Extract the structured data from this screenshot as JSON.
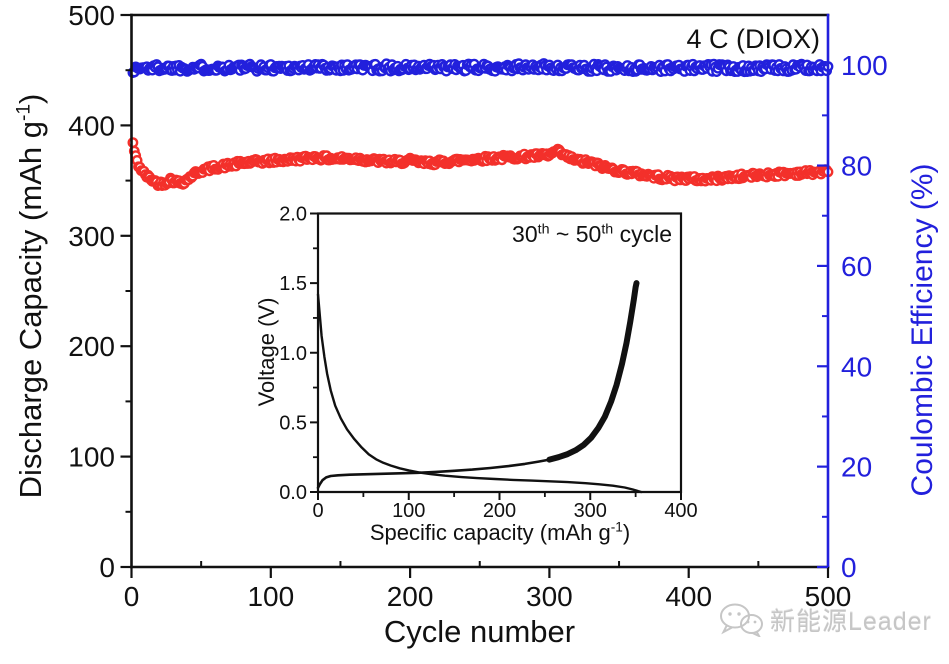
{
  "chart_data": [
    {
      "type": "scatter",
      "annotation": "4 C (DIOX)",
      "xlabel": "Cycle number",
      "ylabel_left": {
        "pre": "Discharge Capacity (mAh g",
        "sup": "-1",
        "post": ")"
      },
      "ylabel_right": "Coulombic Efficiency (%)",
      "xlim": [
        0,
        500
      ],
      "ylim_left": [
        0,
        500
      ],
      "ylim_right": [
        0,
        110
      ],
      "x_major_ticks": [
        0,
        100,
        200,
        300,
        400,
        500
      ],
      "x_minor_ticks": [
        50,
        150,
        250,
        350,
        450
      ],
      "y_left_major_ticks": [
        0,
        100,
        200,
        300,
        400,
        500
      ],
      "y_left_minor_ticks": [
        50,
        150,
        250,
        350,
        450
      ],
      "y_right_major_ticks": [
        0,
        20,
        40,
        60,
        80,
        100
      ],
      "y_right_minor_ticks": [
        10,
        30,
        50,
        70,
        90
      ],
      "grid": false,
      "legend": "none",
      "axis_color_left": "#111111",
      "axis_color_right": "#2220dc",
      "series": [
        {
          "name": "discharge-capacity",
          "axis": "left",
          "color": "#f3302b",
          "marker": "open-circle",
          "jitter": 2.3,
          "trend_anchors": [
            [
              1,
              384
            ],
            [
              2,
              377
            ],
            [
              3,
              371
            ],
            [
              5,
              364
            ],
            [
              8,
              358
            ],
            [
              12,
              353
            ],
            [
              16,
              350
            ],
            [
              20,
              347
            ],
            [
              24,
              348
            ],
            [
              28,
              351
            ],
            [
              32,
              349
            ],
            [
              36,
              348
            ],
            [
              40,
              351
            ],
            [
              45,
              356
            ],
            [
              50,
              359
            ],
            [
              60,
              362
            ],
            [
              70,
              364
            ],
            [
              80,
              366
            ],
            [
              90,
              367
            ],
            [
              100,
              368
            ],
            [
              115,
              369
            ],
            [
              130,
              371
            ],
            [
              145,
              370
            ],
            [
              160,
              370
            ],
            [
              175,
              368
            ],
            [
              190,
              367
            ],
            [
              200,
              368
            ],
            [
              210,
              366
            ],
            [
              225,
              367
            ],
            [
              240,
              369
            ],
            [
              255,
              370
            ],
            [
              270,
              371
            ],
            [
              285,
              372
            ],
            [
              300,
              373
            ],
            [
              305,
              377
            ],
            [
              312,
              372
            ],
            [
              320,
              368
            ],
            [
              330,
              366
            ],
            [
              340,
              362
            ],
            [
              350,
              359
            ],
            [
              360,
              357
            ],
            [
              370,
              355
            ],
            [
              380,
              353
            ],
            [
              390,
              352
            ],
            [
              400,
              352
            ],
            [
              410,
              351
            ],
            [
              420,
              352
            ],
            [
              430,
              353
            ],
            [
              440,
              354
            ],
            [
              450,
              355
            ],
            [
              465,
              356
            ],
            [
              480,
              357
            ],
            [
              500,
              358
            ]
          ]
        },
        {
          "name": "coulombic-efficiency",
          "axis": "right",
          "color": "#2220dc",
          "marker": "open-circle",
          "jitter": 0.75,
          "trend_anchors": [
            [
              1,
              99.0
            ],
            [
              5,
              99.4
            ],
            [
              20,
              99.5
            ],
            [
              60,
              99.5
            ],
            [
              100,
              99.5
            ],
            [
              150,
              99.6
            ],
            [
              200,
              99.5
            ],
            [
              250,
              99.5
            ],
            [
              300,
              99.6
            ],
            [
              350,
              99.4
            ],
            [
              400,
              99.5
            ],
            [
              450,
              99.4
            ],
            [
              500,
              99.5
            ]
          ]
        }
      ]
    },
    {
      "type": "line",
      "title": {
        "t1": "30",
        "s1": "th",
        "t2": " ~ 50",
        "s2": "th",
        "t3": " cycle"
      },
      "xlabel": {
        "pre": "Specific capacity (mAh g",
        "sup": "-1",
        "post": ")"
      },
      "ylabel": "Voltage (V)",
      "xlim": [
        0,
        400
      ],
      "ylim": [
        0,
        2.0
      ],
      "x_major_ticks": [
        0,
        100,
        200,
        300,
        400
      ],
      "x_minor_ticks": [
        50,
        150,
        250,
        350
      ],
      "y_major_ticks": [
        "0.0",
        "0.5",
        "1.0",
        "1.5",
        "2.0"
      ],
      "y_minor_ticks": [
        0.25,
        0.75,
        1.25,
        1.75
      ],
      "grid": false,
      "line_color": "#111111",
      "series": [
        {
          "name": "discharge-curve",
          "width": 2.4,
          "points": [
            [
              0,
              1.42
            ],
            [
              2,
              1.27
            ],
            [
              4,
              1.12
            ],
            [
              7,
              0.97
            ],
            [
              10,
              0.85
            ],
            [
              14,
              0.73
            ],
            [
              19,
              0.62
            ],
            [
              25,
              0.53
            ],
            [
              32,
              0.45
            ],
            [
              40,
              0.38
            ],
            [
              48,
              0.32
            ],
            [
              56,
              0.27
            ],
            [
              64,
              0.235
            ],
            [
              72,
              0.21
            ],
            [
              80,
              0.19
            ],
            [
              90,
              0.17
            ],
            [
              100,
              0.155
            ],
            [
              112,
              0.14
            ],
            [
              125,
              0.128
            ],
            [
              140,
              0.117
            ],
            [
              158,
              0.107
            ],
            [
              175,
              0.1
            ],
            [
              195,
              0.093
            ],
            [
              215,
              0.087
            ],
            [
              235,
              0.082
            ],
            [
              255,
              0.077
            ],
            [
              275,
              0.071
            ],
            [
              295,
              0.063
            ],
            [
              310,
              0.055
            ],
            [
              325,
              0.045
            ],
            [
              338,
              0.032
            ],
            [
              347,
              0.018
            ],
            [
              353,
              0.006
            ],
            [
              356,
              0.0
            ]
          ]
        },
        {
          "name": "charge-curve",
          "width": 2.6,
          "width_steep": 6,
          "steep_from": 255,
          "points": [
            [
              0,
              0.03
            ],
            [
              2,
              0.055
            ],
            [
              5,
              0.085
            ],
            [
              9,
              0.105
            ],
            [
              14,
              0.115
            ],
            [
              22,
              0.12
            ],
            [
              35,
              0.124
            ],
            [
              50,
              0.127
            ],
            [
              70,
              0.131
            ],
            [
              90,
              0.134
            ],
            [
              110,
              0.138
            ],
            [
              130,
              0.144
            ],
            [
              150,
              0.152
            ],
            [
              170,
              0.161
            ],
            [
              190,
              0.172
            ],
            [
              210,
              0.186
            ],
            [
              228,
              0.202
            ],
            [
              243,
              0.218
            ],
            [
              255,
              0.233
            ],
            [
              265,
              0.25
            ],
            [
              275,
              0.272
            ],
            [
              284,
              0.3
            ],
            [
              293,
              0.34
            ],
            [
              301,
              0.39
            ],
            [
              309,
              0.46
            ],
            [
              316,
              0.54
            ],
            [
              323,
              0.65
            ],
            [
              329,
              0.77
            ],
            [
              335,
              0.92
            ],
            [
              340,
              1.07
            ],
            [
              344,
              1.22
            ],
            [
              348,
              1.38
            ],
            [
              350,
              1.47
            ],
            [
              351,
              1.5
            ]
          ]
        }
      ]
    }
  ],
  "watermark": {
    "text": "新能源Leader",
    "icon": "wechat-icon",
    "color": "#c6c6c6"
  }
}
